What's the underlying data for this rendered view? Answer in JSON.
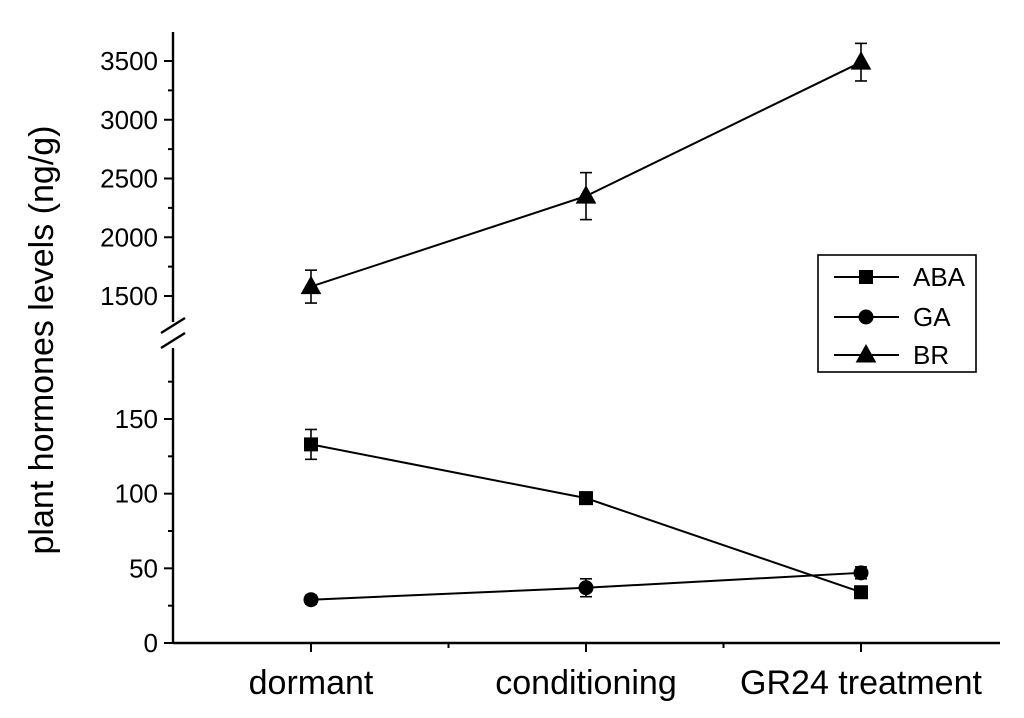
{
  "chart_data": {
    "type": "line",
    "ylabel": "plant hormones levels (ng/g)",
    "xlabel": "",
    "categories": [
      "dormant",
      "conditioning",
      "GR24 treatment"
    ],
    "y_axis_broken": true,
    "y_lower_segment": {
      "ylim": [
        0,
        190
      ],
      "ticks": [
        0,
        50,
        100,
        150
      ]
    },
    "y_upper_segment": {
      "ylim": [
        1300,
        3750
      ],
      "ticks": [
        1500,
        2000,
        2500,
        3000,
        3500
      ]
    },
    "legend_position": "right",
    "series": [
      {
        "name": "ABA",
        "marker": "square",
        "values": [
          133,
          97,
          34
        ],
        "errors": [
          10,
          4,
          2
        ]
      },
      {
        "name": "GA",
        "marker": "circle",
        "values": [
          29,
          37,
          47
        ],
        "errors": [
          3,
          6,
          4
        ]
      },
      {
        "name": "BR",
        "marker": "triangle",
        "values": [
          1580,
          2350,
          3490
        ],
        "errors": [
          140,
          200,
          160
        ]
      }
    ]
  }
}
